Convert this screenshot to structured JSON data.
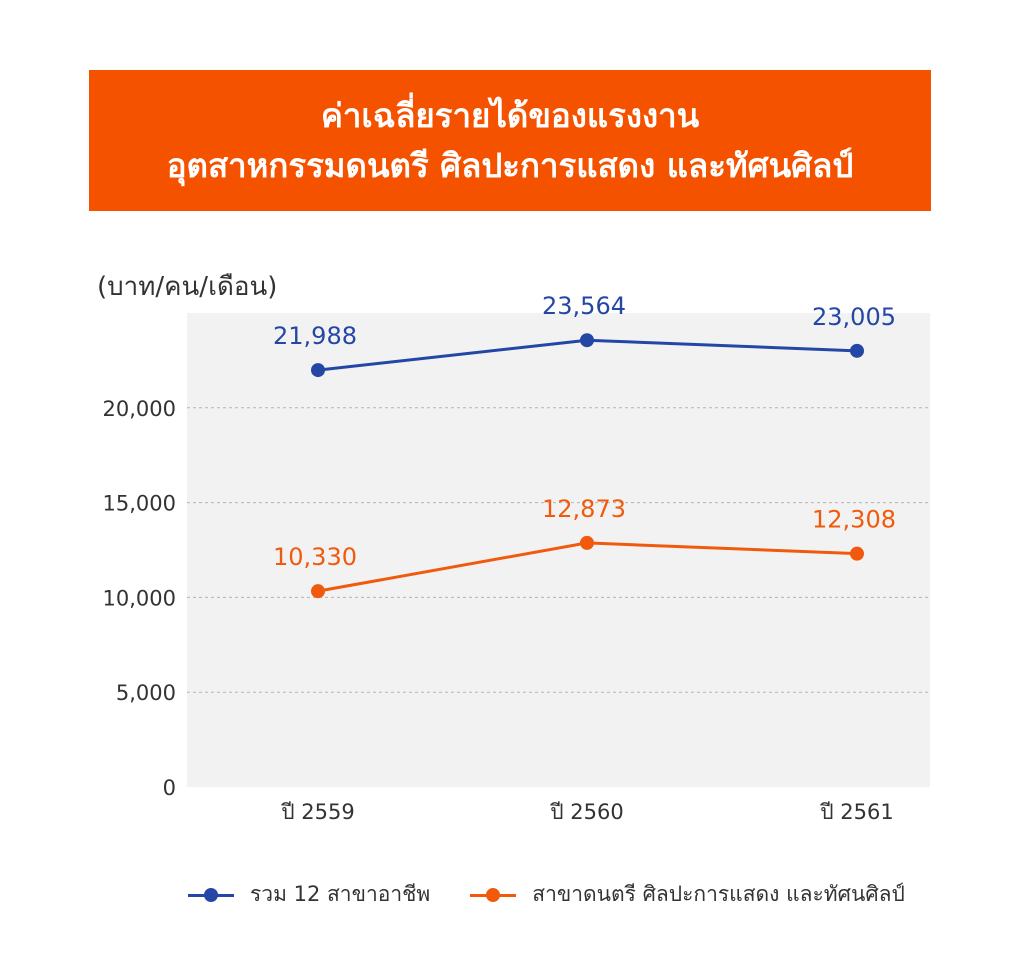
{
  "title": {
    "line1": "ค่าเฉลี่ยรายได้ของแรงงาน",
    "line2": "อุตสาหกรรมดนตรี ศิลปะการแสดง และทัศนศิลป์"
  },
  "colors": {
    "banner": "#f55200",
    "series_total": "#2447a6",
    "series_music": "#f15a0c",
    "plot_bg": "#f2f2f2"
  },
  "chart_data": {
    "type": "line",
    "ylabel": "(บาท/คน/เดือน)",
    "xlabel": "",
    "categories": [
      "ปี 2559",
      "ปี 2560",
      "ปี 2561"
    ],
    "ylim": [
      0,
      25000
    ],
    "yticks": [
      0,
      5000,
      10000,
      15000,
      20000
    ],
    "ytick_labels": [
      "0",
      "5,000",
      "10,000",
      "15,000",
      "20,000"
    ],
    "grid": true,
    "legend_position": "bottom",
    "series": [
      {
        "name": "รวม 12 สาขาอาชีพ",
        "values": [
          21988,
          23564,
          23005
        ],
        "labels": [
          "21,988",
          "23,564",
          "23,005"
        ],
        "color": "#2447a6"
      },
      {
        "name": "สาขาดนตรี ศิลปะการแสดง และทัศนศิลป์",
        "values": [
          10330,
          12873,
          12308
        ],
        "labels": [
          "10,330",
          "12,873",
          "12,308"
        ],
        "color": "#f15a0c"
      }
    ]
  }
}
